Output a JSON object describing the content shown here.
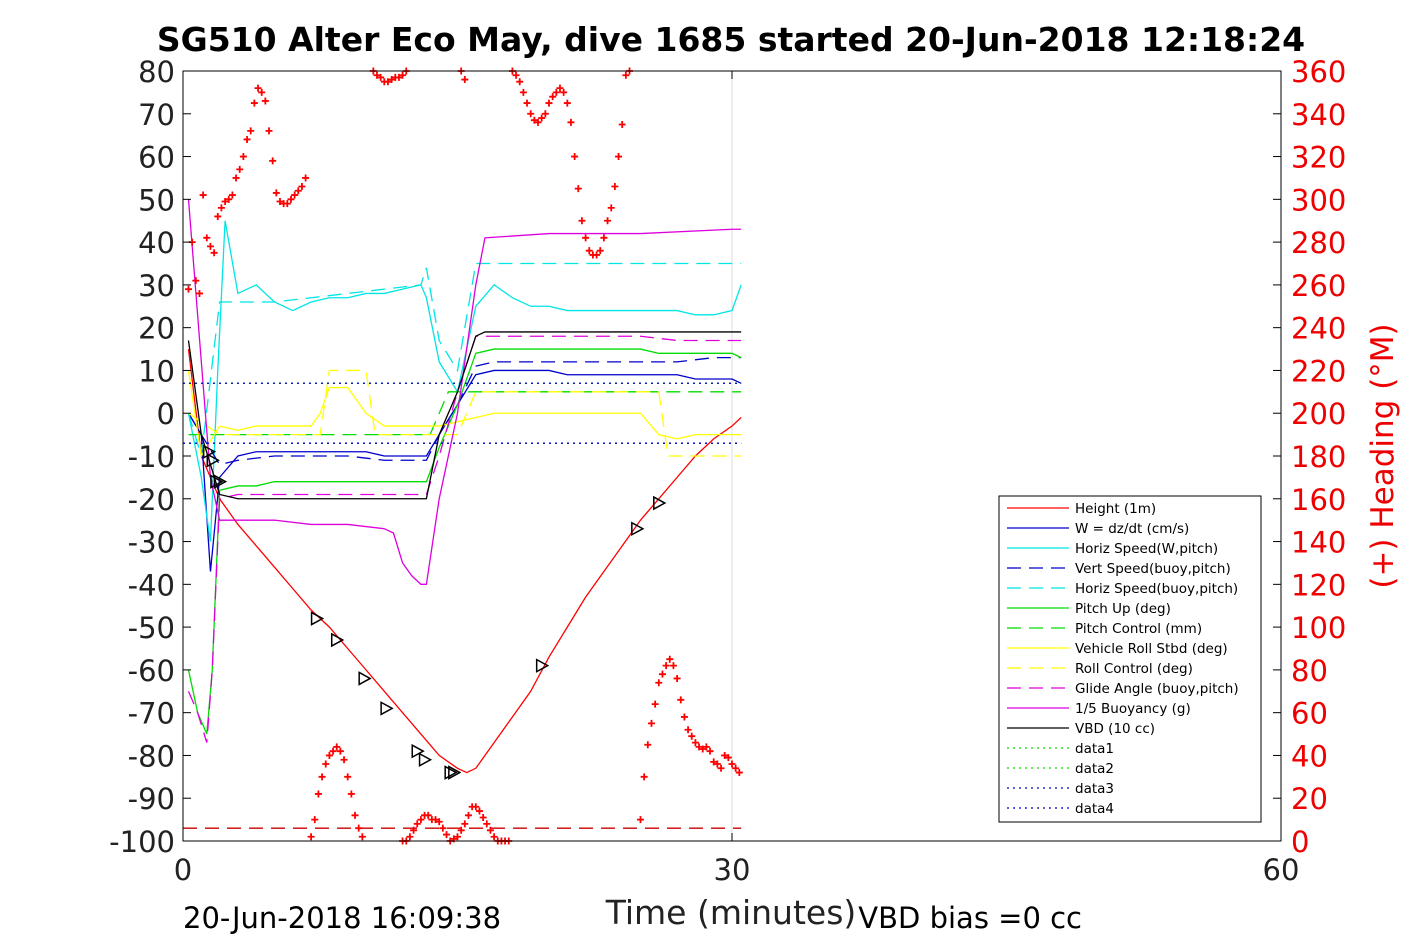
{
  "chart_data": {
    "type": "line",
    "title": "SG510 Alter Eco May, dive 1685 started 20-Jun-2018 12:18:24",
    "xlabel": "Time (minutes)",
    "ylabel_right": "(+) Heading (°M)",
    "xlim": [
      0,
      60
    ],
    "ylim_left": [
      -100,
      80
    ],
    "ylim_right": [
      0,
      360
    ],
    "x_ticks": [
      0,
      30,
      60
    ],
    "y_ticks_left": [
      80,
      70,
      60,
      50,
      40,
      30,
      20,
      10,
      0,
      -10,
      -20,
      -30,
      -40,
      -50,
      -60,
      -70,
      -80,
      -90,
      -100
    ],
    "y_ticks_right": [
      360,
      340,
      320,
      300,
      280,
      260,
      240,
      220,
      200,
      180,
      160,
      140,
      120,
      100,
      80,
      60,
      40,
      20,
      0
    ],
    "grid": "vertical at x=30",
    "footer_left": "20-Jun-2018 16:09:38",
    "footer_right": "VBD bias =0 cc",
    "legend_position": "lower-right",
    "legend": [
      {
        "label": "Height (1m)",
        "color": "#ff0000",
        "style": "solid"
      },
      {
        "label": "W = dz/dt (cm/s)",
        "color": "#0000cc",
        "style": "solid"
      },
      {
        "label": "Horiz Speed(W,pitch)",
        "color": "#00e5e5",
        "style": "solid"
      },
      {
        "label": "Vert Speed(buoy,pitch)",
        "color": "#0000cc",
        "style": "dashed"
      },
      {
        "label": "Horiz Speed(buoy,pitch)",
        "color": "#00e5e5",
        "style": "dashed"
      },
      {
        "label": "Pitch Up (deg)",
        "color": "#00dd00",
        "style": "solid"
      },
      {
        "label": "Pitch Control (mm)",
        "color": "#00dd00",
        "style": "dashed"
      },
      {
        "label": "Vehicle Roll Stbd (deg)",
        "color": "#ffff00",
        "style": "solid"
      },
      {
        "label": "Roll Control (deg)",
        "color": "#ffff00",
        "style": "dashed"
      },
      {
        "label": "Glide Angle (buoy,pitch)",
        "color": "#dd00dd",
        "style": "dashed"
      },
      {
        "label": "1/5 Buoyancy (g)",
        "color": "#dd00dd",
        "style": "solid"
      },
      {
        "label": "VBD (10 cc)",
        "color": "#000000",
        "style": "solid"
      },
      {
        "label": "data1",
        "color": "#00dd00",
        "style": "dotted"
      },
      {
        "label": "data2",
        "color": "#00dd00",
        "style": "dotted"
      },
      {
        "label": "data3",
        "color": "#0000cc",
        "style": "dotted"
      },
      {
        "label": "data4",
        "color": "#0000cc",
        "style": "dotted"
      }
    ],
    "series": [
      {
        "name": "Height (1m)",
        "color": "#ff0000",
        "style": "solid",
        "x": [
          0.3,
          1,
          2,
          3,
          4,
          5,
          6,
          7,
          8,
          9,
          10,
          11,
          12,
          13,
          14,
          15,
          15.5,
          16,
          17,
          18,
          19,
          20,
          21,
          22,
          23,
          24,
          25,
          26,
          27,
          28,
          29,
          30,
          30.5
        ],
        "y": [
          15,
          -10,
          -20,
          -26,
          -31,
          -36,
          -41,
          -46,
          -50,
          -55,
          -60,
          -65,
          -70,
          -75,
          -80,
          -83,
          -84,
          -83,
          -77,
          -71,
          -65,
          -57,
          -50,
          -43,
          -37,
          -31,
          -25,
          -20,
          -15,
          -10,
          -6,
          -3,
          -1
        ]
      },
      {
        "name": "W = dz/dt (cm/s)",
        "color": "#0000cc",
        "style": "solid",
        "x": [
          0.3,
          1,
          1.5,
          2,
          3,
          4,
          5,
          6,
          7,
          8,
          9,
          10,
          11,
          12,
          13,
          13.3,
          14,
          15,
          16,
          17,
          18,
          19,
          20,
          21,
          22,
          23,
          24,
          25,
          26,
          27,
          28,
          29,
          30,
          30.5
        ],
        "y": [
          0,
          -5,
          -37,
          -15,
          -10,
          -9,
          -9,
          -9,
          -9,
          -9,
          -9,
          -9,
          -10,
          -10,
          -10,
          -10,
          -5,
          2,
          9,
          10,
          10,
          10,
          10,
          9,
          9,
          9,
          9,
          9,
          9,
          9,
          8,
          8,
          8,
          7
        ]
      },
      {
        "name": "Horiz Speed(W,pitch)",
        "color": "#00e5e5",
        "style": "solid",
        "x": [
          0.3,
          1,
          1.5,
          1.9,
          2.3,
          3,
          4,
          5,
          6,
          7,
          8,
          9,
          10,
          11,
          12,
          13,
          13.3,
          14,
          15,
          16,
          17,
          18,
          19,
          20,
          21,
          22,
          23,
          24,
          25,
          26,
          27,
          28,
          29,
          30,
          30.5
        ],
        "y": [
          0,
          -15,
          -30,
          10,
          45,
          28,
          30,
          26,
          24,
          26,
          27,
          27,
          28,
          28,
          29,
          30,
          27,
          12,
          5,
          25,
          30,
          27,
          25,
          25,
          24,
          24,
          24,
          24,
          24,
          24,
          24,
          23,
          23,
          24,
          30
        ]
      },
      {
        "name": "Vert Speed(buoy,pitch)",
        "color": "#0000cc",
        "style": "dashed",
        "x": [
          0.3,
          1,
          2,
          3,
          5,
          7,
          9,
          11,
          13,
          13.3,
          14,
          15,
          16,
          17,
          19,
          21,
          23,
          25,
          27,
          29,
          30,
          30.5
        ],
        "y": [
          0,
          -5,
          -12,
          -11,
          -10,
          -10,
          -10,
          -11,
          -11,
          -11,
          -5,
          2,
          11,
          12,
          12,
          12,
          12,
          12,
          12,
          13,
          13,
          13
        ]
      },
      {
        "name": "Horiz Speed(buoy,pitch)",
        "color": "#00e5e5",
        "style": "dashed",
        "x": [
          0.3,
          1,
          2,
          3,
          5,
          7,
          9,
          11,
          13,
          13.3,
          14,
          15,
          16,
          17,
          19,
          21,
          23,
          25,
          27,
          29,
          30,
          30.5
        ],
        "y": [
          0,
          -10,
          26,
          26,
          26,
          27,
          28,
          29,
          30,
          34,
          17,
          10,
          35,
          35,
          35,
          35,
          35,
          35,
          35,
          35,
          35,
          35
        ]
      },
      {
        "name": "Pitch Up (deg)",
        "color": "#00dd00",
        "style": "solid",
        "x": [
          0.3,
          0.8,
          1.3,
          1.6,
          2,
          3,
          4,
          5,
          6,
          7,
          8,
          9,
          10,
          11,
          12,
          13,
          13.3,
          14,
          15,
          16,
          17,
          18,
          19,
          20,
          21,
          22,
          23,
          24,
          25,
          26,
          27,
          28,
          29,
          30,
          30.5
        ],
        "y": [
          -60,
          -70,
          -75,
          -60,
          -18,
          -17,
          -17,
          -16,
          -16,
          -16,
          -16,
          -16,
          -16,
          -16,
          -16,
          -16,
          -16,
          -8,
          2,
          14,
          15,
          15,
          15,
          15,
          15,
          15,
          15,
          15,
          15,
          14,
          14,
          14,
          14,
          14,
          13
        ]
      },
      {
        "name": "Pitch Control (mm)",
        "color": "#00dd00",
        "style": "dashed",
        "x": [
          0.3,
          2,
          13.5,
          14.5,
          30.5
        ],
        "y": [
          -5,
          -5,
          -5,
          5,
          5
        ]
      },
      {
        "name": "Vehicle Roll Stbd (deg)",
        "color": "#ffff00",
        "style": "solid",
        "x": [
          0.3,
          1,
          2,
          3,
          4,
          5,
          6,
          7,
          7.5,
          8,
          9,
          10,
          11,
          12,
          13,
          14,
          15,
          16,
          17,
          18,
          19,
          20,
          22,
          24,
          25,
          26,
          27,
          28,
          29,
          30,
          30.5
        ],
        "y": [
          10,
          -10,
          -3,
          -4,
          -3,
          -3,
          -3,
          -3,
          0,
          6,
          6,
          0,
          -3,
          -3,
          -3,
          -3,
          -2,
          -1,
          0,
          0,
          0,
          0,
          0,
          0,
          0,
          -5,
          -6,
          -5,
          -5,
          -5,
          -5
        ]
      },
      {
        "name": "Roll Control (deg)",
        "color": "#ffff00",
        "style": "dashed",
        "x": [
          0.3,
          2,
          7.5,
          8,
          10,
          10.5,
          15,
          16,
          19,
          20,
          26,
          26.5,
          30,
          30.5
        ],
        "y": [
          0,
          -5,
          -5,
          10,
          10,
          -5,
          -5,
          5,
          5,
          5,
          5,
          -10,
          -10,
          -10
        ]
      },
      {
        "name": "Glide Angle (buoy,pitch)",
        "color": "#dd00dd",
        "style": "dashed",
        "x": [
          0.3,
          0.8,
          1.3,
          1.6,
          2,
          3,
          5,
          7,
          9,
          11,
          13,
          13.3,
          14,
          15,
          16,
          17,
          19,
          21,
          23,
          25,
          27,
          29,
          30,
          30.5
        ],
        "y": [
          -65,
          -70,
          -77,
          -60,
          -20,
          -19,
          -19,
          -19,
          -19,
          -19,
          -19,
          -19,
          -10,
          5,
          18,
          18,
          18,
          18,
          18,
          18,
          17,
          17,
          17,
          17
        ]
      },
      {
        "name": "1/5 Buoyancy (g)",
        "color": "#dd00dd",
        "style": "solid",
        "x": [
          0.3,
          1.5,
          2,
          3,
          5,
          7,
          9,
          11,
          11.5,
          12,
          12.5,
          13,
          13.3,
          14,
          15,
          16,
          16.5,
          20,
          25,
          30,
          30.5
        ],
        "y": [
          50,
          -15,
          -25,
          -25,
          -25,
          -26,
          -26,
          -27,
          -28,
          -35,
          -38,
          -40,
          -40,
          -20,
          0,
          30,
          41,
          42,
          42,
          43,
          43
        ]
      },
      {
        "name": "VBD (10 cc)",
        "color": "#000000",
        "style": "solid",
        "x": [
          0.3,
          1,
          2,
          3,
          5,
          7,
          9,
          11,
          13,
          13.3,
          14,
          15,
          16,
          16.5,
          20,
          25,
          30,
          30.5
        ],
        "y": [
          17,
          -5,
          -19,
          -20,
          -20,
          -20,
          -20,
          -20,
          -20,
          -20,
          -5,
          5,
          18,
          19,
          19,
          19,
          19,
          19
        ]
      },
      {
        "name": "data1",
        "color": "#00dd00",
        "style": "dotted",
        "x": [
          0,
          30.5
        ],
        "y": [
          7,
          7
        ]
      },
      {
        "name": "data2",
        "color": "#00dd00",
        "style": "dotted",
        "x": [
          0,
          30.5
        ],
        "y": [
          -7,
          -7
        ]
      },
      {
        "name": "data3",
        "color": "#0000cc",
        "style": "dotted",
        "x": [
          0,
          30.5
        ],
        "y": [
          7,
          7
        ]
      },
      {
        "name": "data4",
        "color": "#0000cc",
        "style": "dotted",
        "x": [
          0,
          30.5
        ],
        "y": [
          -7,
          -7
        ]
      }
    ],
    "extra_lines": [
      {
        "color": "#cc0000",
        "style": "dashed",
        "axis": "left",
        "x": [
          0,
          30.5
        ],
        "y": [
          -97,
          -97
        ]
      }
    ],
    "triangle_markers": {
      "color": "#000000",
      "points": [
        [
          1.4,
          -9
        ],
        [
          1.6,
          -11
        ],
        [
          1.8,
          -16
        ],
        [
          2.0,
          -16
        ],
        [
          7.3,
          -48
        ],
        [
          8.4,
          -53
        ],
        [
          9.9,
          -62
        ],
        [
          11.1,
          -69
        ],
        [
          12.8,
          -79
        ],
        [
          13.2,
          -81
        ],
        [
          14.6,
          -84
        ],
        [
          14.8,
          -84
        ],
        [
          19.6,
          -59
        ],
        [
          24.8,
          -27
        ],
        [
          26.0,
          -21
        ]
      ]
    },
    "heading_points_right_axis": {
      "color": "#ff0000",
      "marker": "+",
      "x": [
        0.3,
        0.5,
        0.7,
        0.9,
        1.1,
        1.3,
        1.5,
        1.7,
        1.9,
        2.1,
        2.3,
        2.5,
        2.7,
        2.9,
        3.1,
        3.3,
        3.5,
        3.7,
        3.9,
        4.1,
        4.3,
        4.5,
        4.7,
        4.9,
        5.1,
        5.3,
        5.5,
        5.7,
        5.9,
        6.1,
        6.3,
        6.5,
        6.7,
        10.4,
        10.6,
        10.8,
        11.0,
        11.2,
        11.4,
        11.6,
        11.8,
        12.0,
        12.2,
        15.0,
        15.2,
        15.4,
        18.0,
        18.2,
        18.4,
        18.6,
        18.8,
        19.0,
        19.2,
        19.4,
        19.6,
        19.8,
        20.0,
        20.2,
        20.4,
        20.6,
        20.8,
        21.0,
        21.2,
        21.4,
        21.6,
        21.8,
        22.0,
        22.2,
        22.4,
        22.6,
        22.8,
        23.0,
        23.2,
        23.4,
        23.6,
        23.8,
        24.0,
        24.2,
        24.4,
        24.6,
        24.8,
        7.0,
        7.2,
        7.4,
        7.6,
        7.8,
        8.0,
        8.2,
        8.4,
        8.6,
        8.8,
        9.0,
        9.2,
        9.4,
        9.6,
        9.8,
        12.0,
        12.2,
        12.4,
        12.6,
        12.8,
        13.0,
        13.2,
        13.4,
        13.6,
        13.8,
        14.0,
        14.2,
        14.4,
        14.6,
        14.8,
        15.0,
        15.2,
        15.4,
        15.6,
        15.8,
        16.0,
        16.2,
        16.4,
        16.6,
        16.8,
        17.0,
        17.2,
        17.4,
        17.6,
        17.8,
        25.0,
        25.2,
        25.4,
        25.6,
        25.8,
        26.0,
        26.2,
        26.4,
        26.6,
        26.8,
        27.0,
        27.2,
        27.4,
        27.6,
        27.8,
        28.0,
        28.2,
        28.4,
        28.6,
        28.8,
        29.0,
        29.2,
        29.4,
        29.6,
        29.8,
        30.0,
        30.2,
        30.4
      ],
      "y": [
        258,
        280,
        262,
        256,
        302,
        282,
        278,
        275,
        292,
        296,
        299,
        300,
        302,
        310,
        314,
        320,
        328,
        332,
        345,
        352,
        350,
        346,
        332,
        318,
        303,
        299,
        298,
        298,
        300,
        302,
        304,
        306,
        310,
        360,
        358,
        357,
        355,
        355,
        356,
        357,
        357,
        358,
        360,
        362,
        360,
        356,
        360,
        358,
        355,
        350,
        345,
        340,
        337,
        336,
        338,
        340,
        345,
        348,
        350,
        352,
        350,
        345,
        336,
        320,
        305,
        290,
        282,
        276,
        274,
        274,
        276,
        282,
        290,
        296,
        306,
        320,
        335,
        358,
        360,
        362,
        362,
        2,
        10,
        22,
        30,
        36,
        40,
        42,
        44,
        42,
        38,
        30,
        22,
        12,
        6,
        2,
        0,
        0,
        2,
        5,
        8,
        10,
        12,
        12,
        10,
        10,
        9,
        6,
        3,
        0,
        1,
        2,
        5,
        8,
        12,
        16,
        16,
        14,
        11,
        8,
        5,
        2,
        0,
        0,
        0,
        0,
        10,
        30,
        45,
        55,
        64,
        74,
        78,
        82,
        85,
        82,
        76,
        66,
        58,
        52,
        49,
        46,
        44,
        43,
        44,
        42,
        37,
        36,
        34,
        40,
        39,
        36,
        34,
        32
      ]
    }
  }
}
